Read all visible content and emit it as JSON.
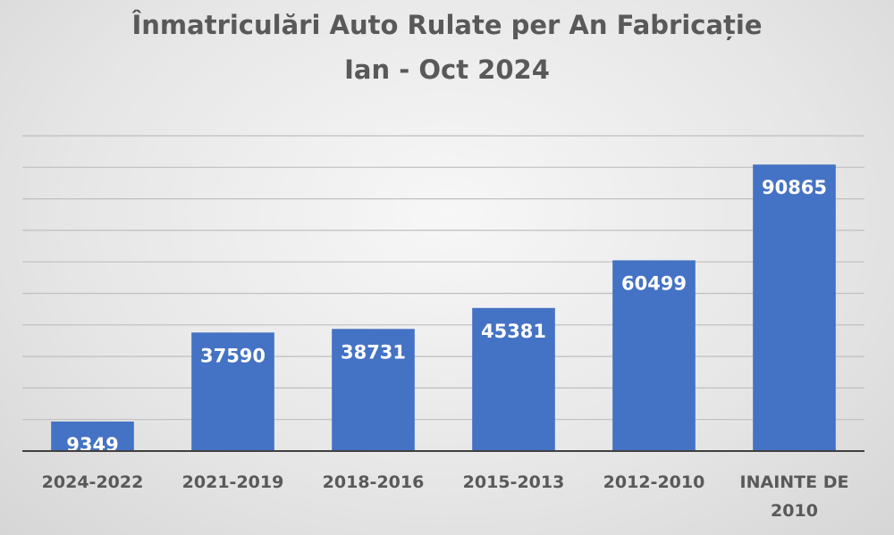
{
  "chart_data": {
    "type": "bar",
    "title": [
      "Înmatriculări Auto Rulate per An Fabricație",
      "Ian - Oct 2024"
    ],
    "categories": [
      [
        "2024-2022"
      ],
      [
        "2021-2019"
      ],
      [
        "2018-2016"
      ],
      [
        "2015-2013"
      ],
      [
        "2012-2010"
      ],
      [
        "INAINTE DE",
        "2010"
      ]
    ],
    "values": [
      9349,
      37590,
      38731,
      45381,
      60499,
      90865
    ],
    "ylim": [
      0,
      100000
    ],
    "grid": true,
    "bar_color": "#4472c4",
    "data_labels": true,
    "data_label_color": "#ffffff"
  }
}
